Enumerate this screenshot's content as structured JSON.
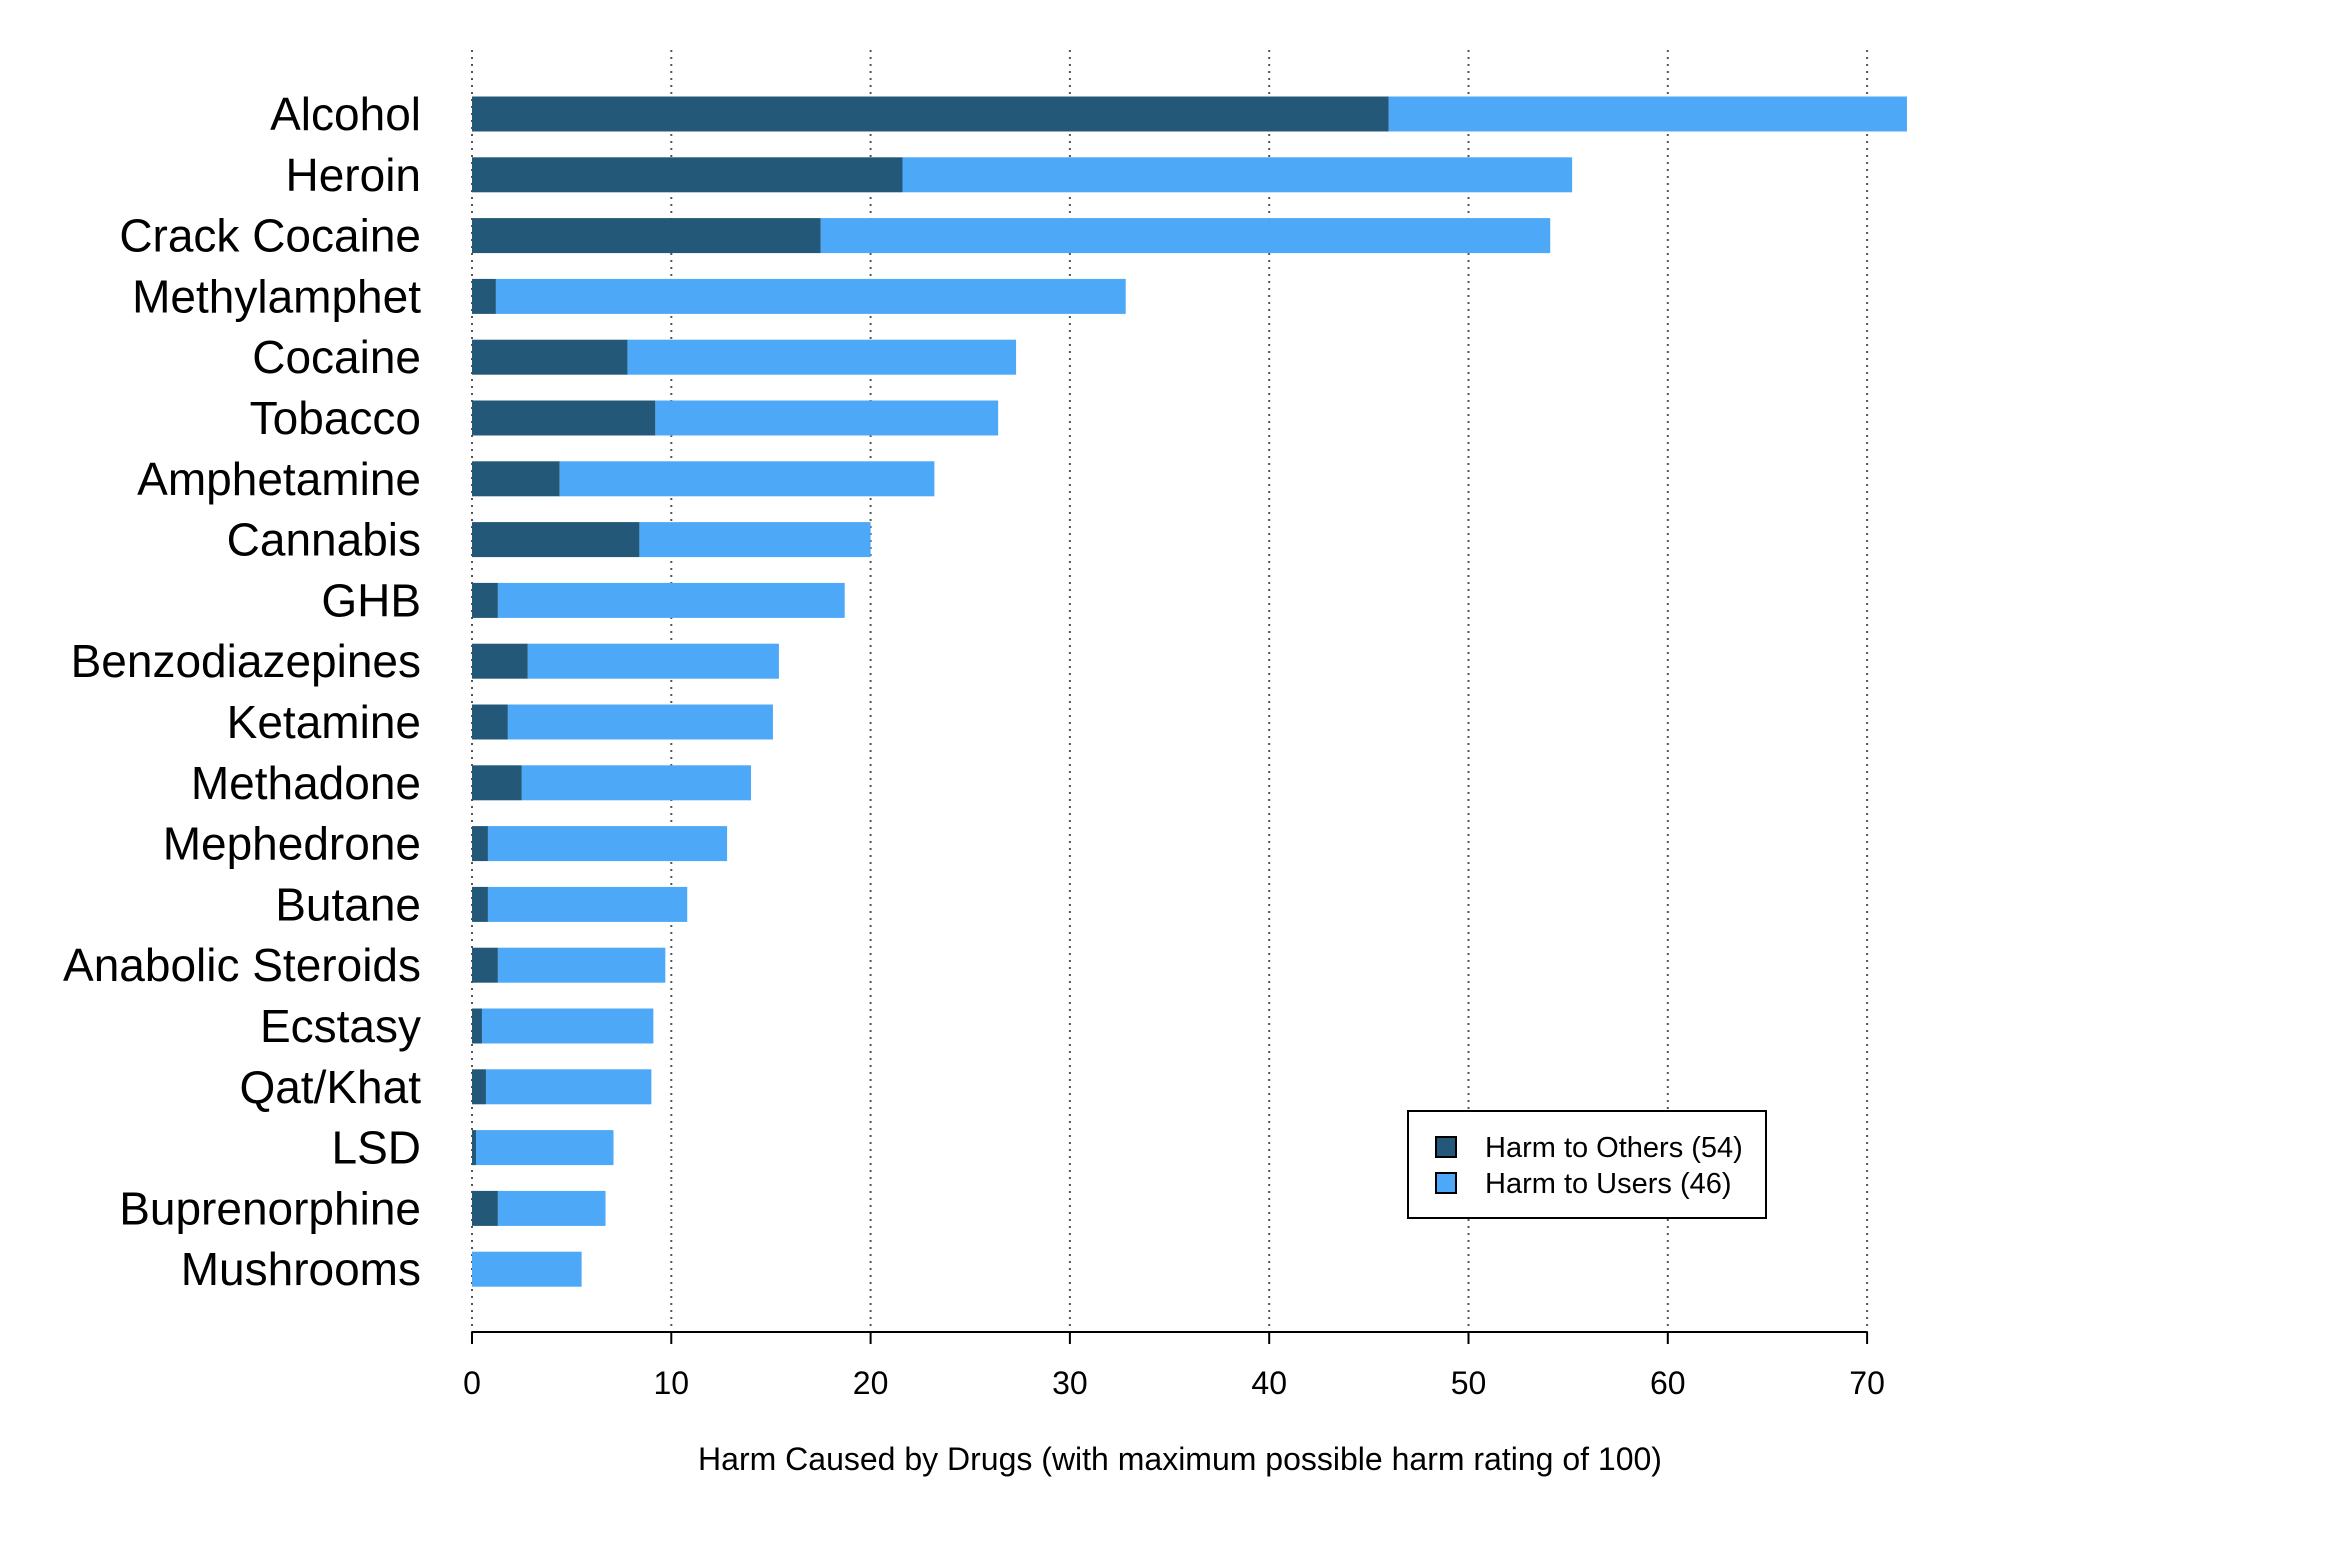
{
  "chart_data": {
    "type": "bar",
    "orientation": "horizontal",
    "stacked": true,
    "categories": [
      "Alcohol",
      "Heroin",
      "Crack Cocaine",
      "Methylamphet",
      "Cocaine",
      "Tobacco",
      "Amphetamine",
      "Cannabis",
      "GHB",
      "Benzodiazepines",
      "Ketamine",
      "Methadone",
      "Mephedrone",
      "Butane",
      "Anabolic Steroids",
      "Ecstasy",
      "Qat/Khat",
      "LSD",
      "Buprenorphine",
      "Mushrooms"
    ],
    "series": [
      {
        "name": "Harm to Others (54)",
        "color": "#245878",
        "values": [
          46,
          21.6,
          17.5,
          1.2,
          7.8,
          9.2,
          4.4,
          8.4,
          1.3,
          2.8,
          1.8,
          2.5,
          0.8,
          0.8,
          1.3,
          0.5,
          0.7,
          0.2,
          1.3,
          0
        ]
      },
      {
        "name": "Harm to Users (46)",
        "color": "#4da9f7",
        "values": [
          26,
          33.6,
          36.6,
          31.6,
          19.5,
          17.2,
          18.8,
          11.6,
          17.4,
          12.6,
          13.3,
          11.5,
          12.0,
          10.0,
          8.4,
          8.6,
          8.3,
          6.9,
          5.4,
          5.5
        ]
      }
    ],
    "xlabel": "Harm Caused by Drugs (with maximum possible harm rating of 100)",
    "ylabel": "",
    "xlim": [
      0,
      72
    ],
    "xticks": [
      0,
      10,
      20,
      30,
      40,
      50,
      60,
      70
    ],
    "grid": "vertical dotted",
    "legend_position": "bottom-right"
  }
}
